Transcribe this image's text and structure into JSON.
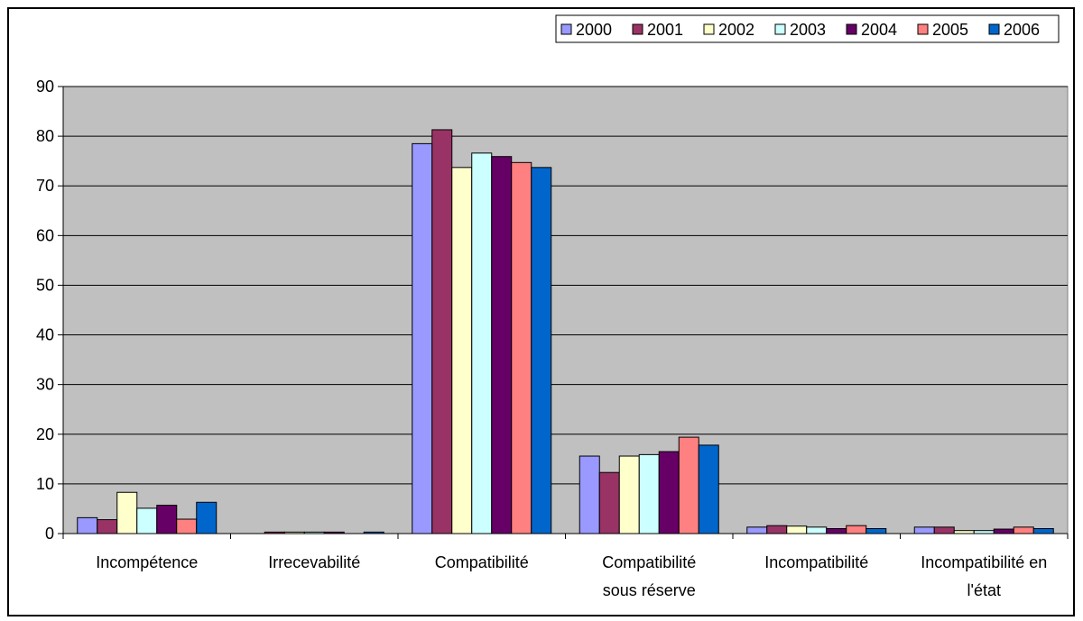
{
  "chart_data": {
    "type": "bar",
    "title": "",
    "xlabel": "",
    "ylabel": "",
    "ylim": [
      0,
      90
    ],
    "yticks": [
      0,
      10,
      20,
      30,
      40,
      50,
      60,
      70,
      80,
      90
    ],
    "grid": true,
    "legend_position": "top-right",
    "plot_background": "#c0c0c0",
    "categories": [
      [
        "Incompétence"
      ],
      [
        "Irrecevabilité"
      ],
      [
        "Compatibilité"
      ],
      [
        "Compatibilité",
        "sous réserve"
      ],
      [
        "Incompatibilité"
      ],
      [
        "Incompatibilité en",
        "l'état"
      ]
    ],
    "series": [
      {
        "name": "2000",
        "color": "#9999ff",
        "values": [
          3.2,
          0.0,
          78.5,
          15.6,
          1.3,
          1.3
        ]
      },
      {
        "name": "2001",
        "color": "#993366",
        "values": [
          2.8,
          0.3,
          81.3,
          12.3,
          1.6,
          1.3
        ]
      },
      {
        "name": "2002",
        "color": "#ffffcc",
        "values": [
          8.3,
          0.3,
          73.7,
          15.6,
          1.5,
          0.6
        ]
      },
      {
        "name": "2003",
        "color": "#ccffff",
        "values": [
          5.1,
          0.3,
          76.6,
          15.9,
          1.3,
          0.6
        ]
      },
      {
        "name": "2004",
        "color": "#660066",
        "values": [
          5.7,
          0.3,
          75.9,
          16.5,
          1.0,
          0.9
        ]
      },
      {
        "name": "2005",
        "color": "#ff8080",
        "values": [
          2.9,
          0.0,
          74.7,
          19.4,
          1.6,
          1.3
        ]
      },
      {
        "name": "2006",
        "color": "#0066cc",
        "values": [
          6.3,
          0.3,
          73.7,
          17.8,
          1.0,
          1.0
        ]
      }
    ]
  }
}
